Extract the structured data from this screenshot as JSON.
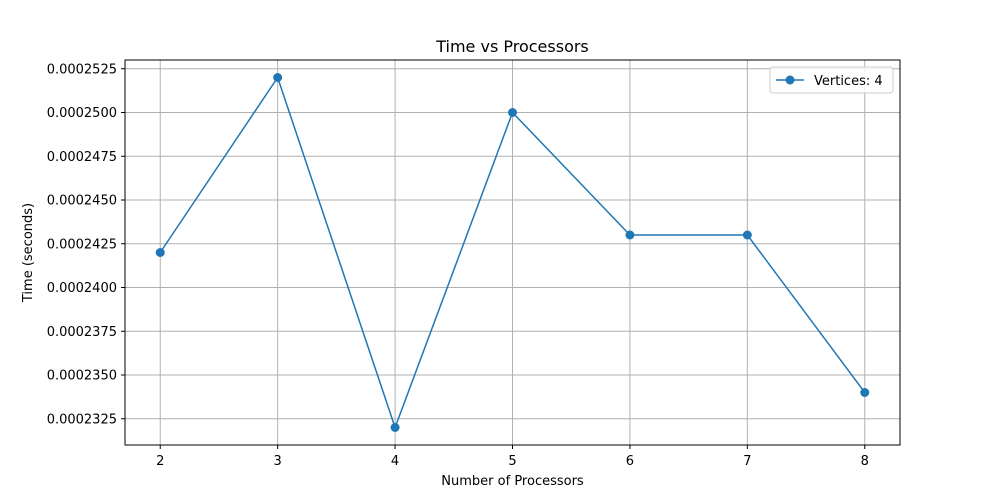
{
  "chart_data": {
    "type": "line",
    "title": "Time vs Processors",
    "xlabel": "Number of Processors",
    "ylabel": "Time (seconds)",
    "x": [
      2,
      3,
      4,
      5,
      6,
      7,
      8
    ],
    "xticks": [
      "2",
      "3",
      "4",
      "5",
      "6",
      "7",
      "8"
    ],
    "yticks": [
      "0.0002325",
      "0.0002350",
      "0.0002375",
      "0.0002400",
      "0.0002425",
      "0.0002450",
      "0.0002475",
      "0.0002500",
      "0.0002525"
    ],
    "ytick_values": [
      0.0002325,
      0.000235,
      0.0002375,
      0.00024,
      0.0002425,
      0.000245,
      0.0002475,
      0.00025,
      0.0002525
    ],
    "xlim": [
      1.7,
      8.3
    ],
    "ylim": [
      0.000231,
      0.000253
    ],
    "grid": true,
    "legend_position": "top-right",
    "series": [
      {
        "name": "Vertices: 4",
        "color": "#1f77b4",
        "marker": "circle",
        "values": [
          0.000242,
          0.000252,
          0.000232,
          0.00025,
          0.000243,
          0.000243,
          0.000234
        ]
      }
    ]
  }
}
